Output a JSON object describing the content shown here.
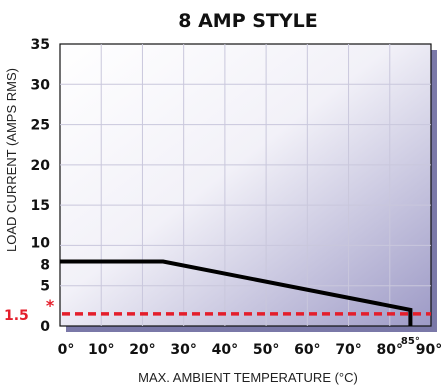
{
  "chart_data": {
    "type": "line",
    "title": "8 AMP STYLE",
    "xlabel": "MAX. AMBIENT TEMPERATURE (°C)",
    "ylabel": "LOAD CURRENT (AMPS RMS)",
    "xlim": [
      0,
      90
    ],
    "ylim": [
      0,
      35
    ],
    "x_ticks": [
      0,
      10,
      20,
      30,
      40,
      50,
      60,
      70,
      80,
      90
    ],
    "x_tick_labels": [
      {
        "value": 0,
        "label": "0°"
      },
      {
        "value": 10,
        "label": "10°"
      },
      {
        "value": 20,
        "label": "20°"
      },
      {
        "value": 30,
        "label": "30°"
      },
      {
        "value": 40,
        "label": "40°"
      },
      {
        "value": 50,
        "label": "50°"
      },
      {
        "value": 60,
        "label": "60°"
      },
      {
        "value": 70,
        "label": "70°"
      },
      {
        "value": 80,
        "label": "80°"
      },
      {
        "value": 85,
        "label": "85°",
        "small": true
      },
      {
        "value": 90,
        "label": "90°"
      }
    ],
    "y_tick_labels": [
      {
        "value": 0,
        "label": "0"
      },
      {
        "value": 5,
        "label": "5"
      },
      {
        "value": 8,
        "label": "8"
      },
      {
        "value": 10,
        "label": "10"
      },
      {
        "value": 15,
        "label": "15"
      },
      {
        "value": 20,
        "label": "20"
      },
      {
        "value": 25,
        "label": "25"
      },
      {
        "value": 30,
        "label": "30"
      },
      {
        "value": 35,
        "label": "35"
      }
    ],
    "grid": true,
    "series": [
      {
        "color": "#000000",
        "points": [
          [
            0,
            8
          ],
          [
            25,
            8
          ],
          [
            85,
            2
          ],
          [
            85,
            0
          ]
        ]
      }
    ],
    "reference_line": {
      "y": 1.5,
      "label": "1.5",
      "marker": "*",
      "color": "#e41e2b",
      "style": "dashed"
    },
    "background_gradient": [
      "#ffffff",
      "#9d9ac6"
    ]
  }
}
